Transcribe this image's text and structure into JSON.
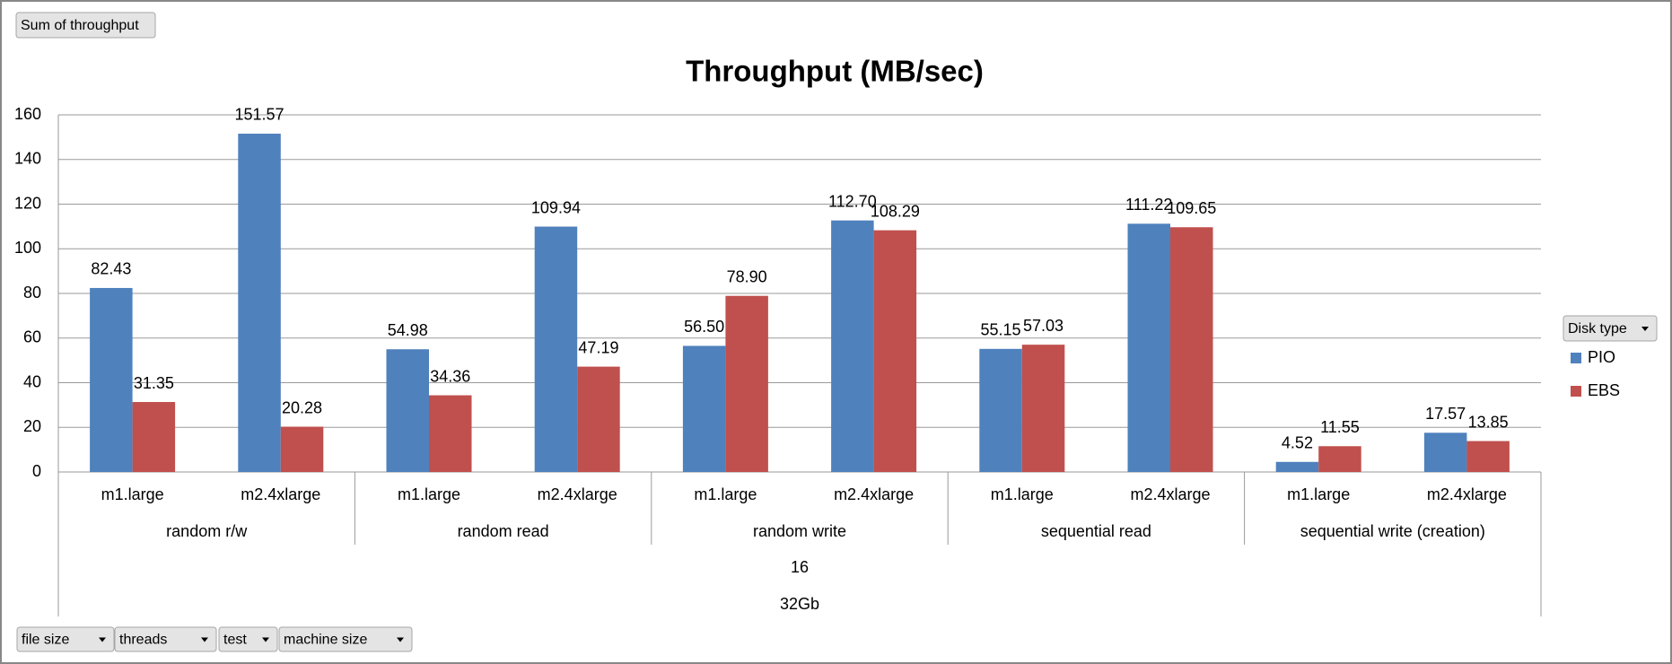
{
  "chart_data": {
    "type": "bar",
    "title": "Throughput (MB/sec)",
    "categories": [
      "m1.large",
      "m2.4xlarge",
      "m1.large",
      "m2.4xlarge",
      "m1.large",
      "m2.4xlarge",
      "m1.large",
      "m2.4xlarge",
      "m1.large",
      "m2.4xlarge"
    ],
    "groups": [
      "random r/w",
      "random read",
      "random write",
      "sequential read",
      "sequential write (creation)"
    ],
    "threads": "16",
    "file_size": "32Gb",
    "series": [
      {
        "name": "PIO",
        "color": "#4f81bd",
        "values": [
          82.43,
          151.57,
          54.98,
          109.94,
          56.5,
          112.7,
          55.15,
          111.22,
          4.52,
          17.57
        ],
        "value_labels": [
          "82.43",
          "151.57",
          "54.98",
          "109.94",
          "56.50",
          "112.70",
          "55.15",
          "111.22",
          "4.52",
          "17.57"
        ]
      },
      {
        "name": "EBS",
        "color": "#c0504d",
        "values": [
          31.35,
          20.28,
          34.36,
          47.19,
          78.9,
          108.29,
          57.03,
          109.65,
          11.55,
          13.85
        ],
        "value_labels": [
          "31.35",
          "20.28",
          "34.36",
          "47.19",
          "78.90",
          "108.29",
          "57.03",
          "109.65",
          "11.55",
          "13.85"
        ]
      }
    ],
    "ylim": [
      0,
      160
    ],
    "yticks": [
      0,
      20,
      40,
      60,
      80,
      100,
      120,
      140,
      160
    ],
    "grid": true,
    "legend_title": "Disk type",
    "value_field": "Sum of throughput",
    "axis_fields": [
      "file size",
      "threads",
      "test",
      "machine size"
    ]
  }
}
